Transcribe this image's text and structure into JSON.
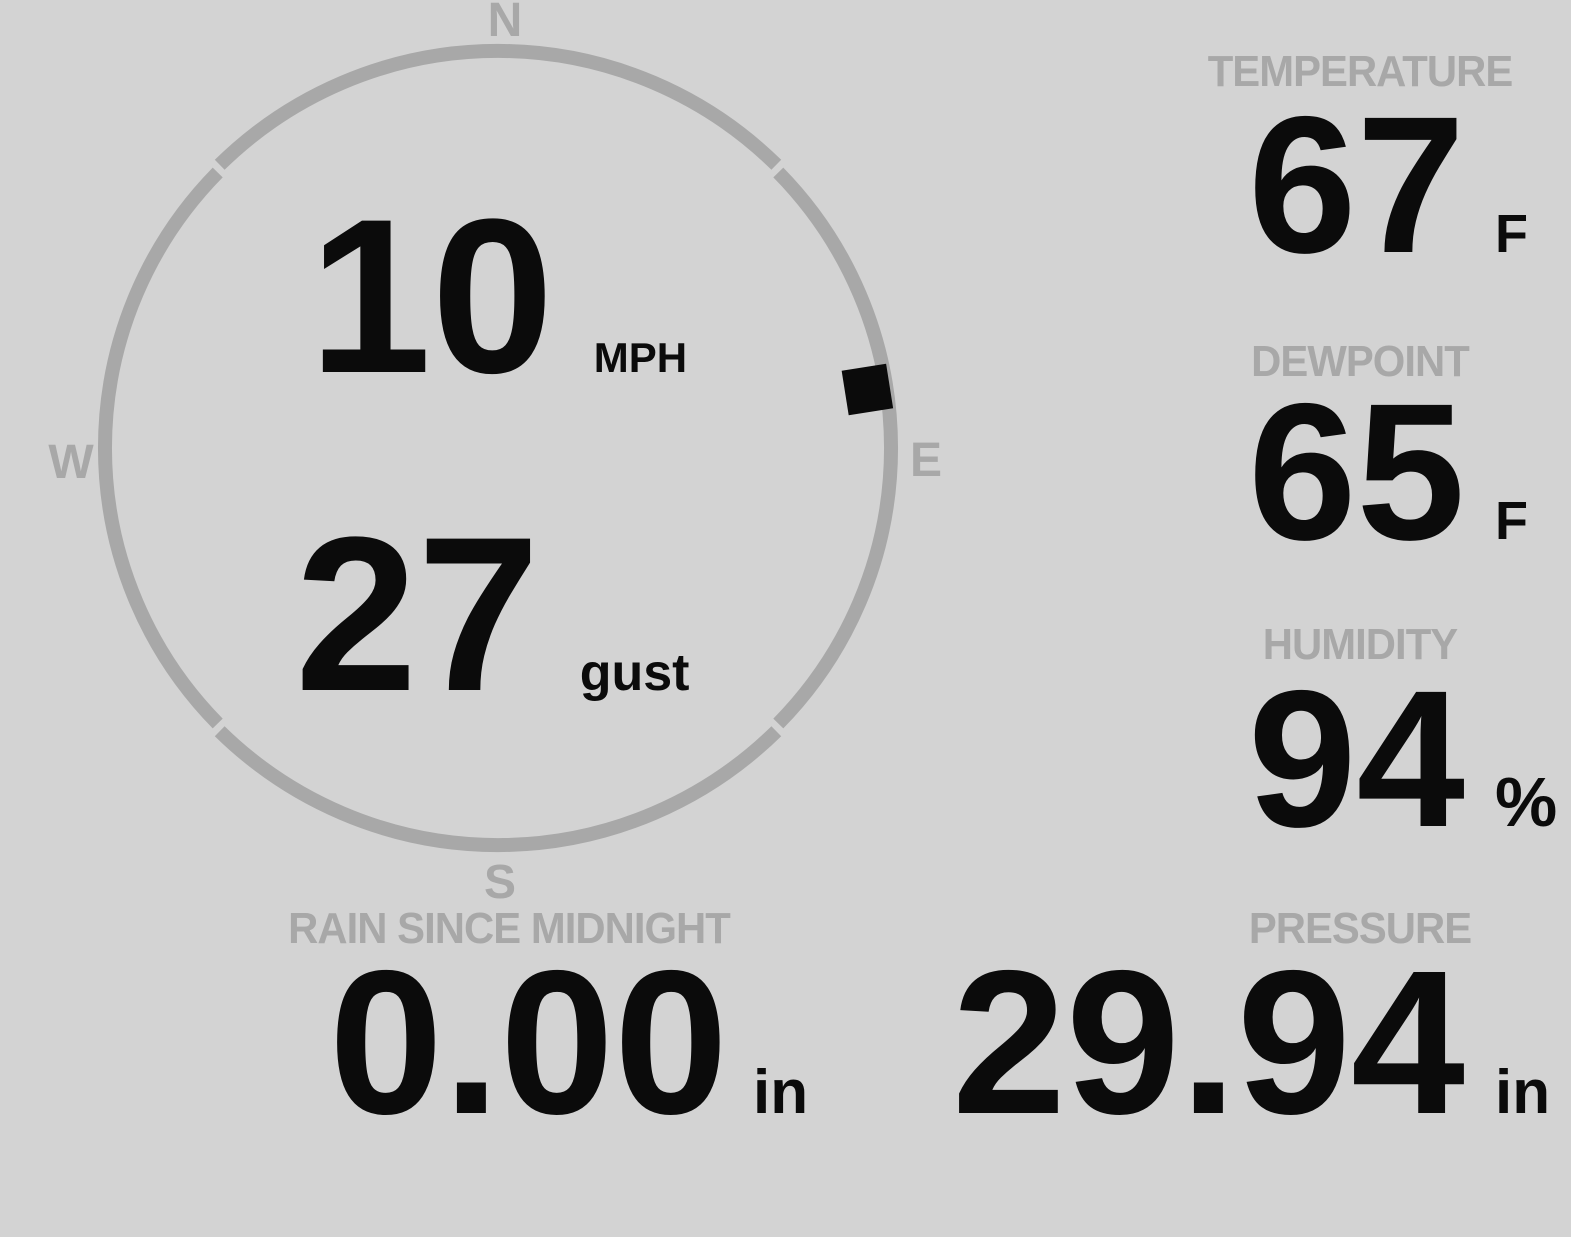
{
  "theme": {
    "background_color": "#d3d3d3",
    "muted_color": "#a8a8a8",
    "value_color": "#0b0b0b"
  },
  "wind": {
    "speed_value": "10",
    "speed_unit": "MPH",
    "gust_value": "27",
    "gust_unit": "gust",
    "direction_deg": 81,
    "cardinals": {
      "north": "N",
      "east": "E",
      "south": "S",
      "west": "W"
    }
  },
  "metrics": {
    "temperature": {
      "label": "TEMPERATURE",
      "value": "67",
      "unit": "F"
    },
    "dewpoint": {
      "label": "DEWPOINT",
      "value": "65",
      "unit": "F"
    },
    "humidity": {
      "label": "HUMIDITY",
      "value": "94",
      "unit": "%"
    },
    "pressure": {
      "label": "PRESSURE",
      "value": "29.94",
      "unit": "in"
    },
    "rain_since_midnight": {
      "label": "RAIN SINCE MIDNIGHT",
      "value": "0.00",
      "unit": "in"
    }
  }
}
